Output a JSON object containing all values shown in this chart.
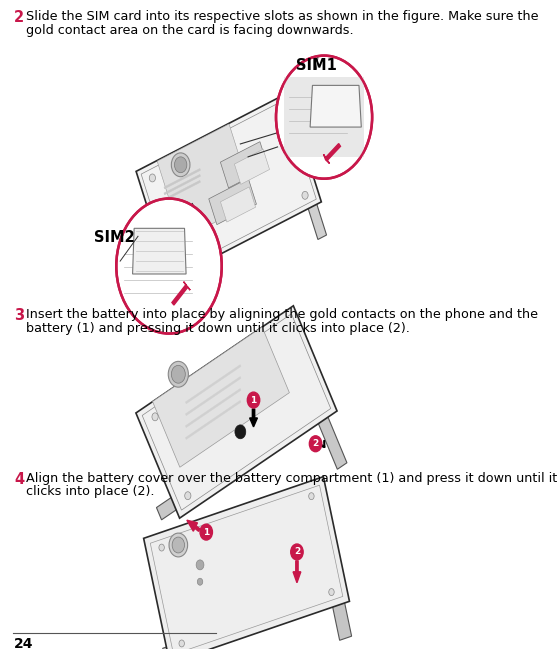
{
  "bg_color": "#ffffff",
  "page_number": "24",
  "step2_number": "2",
  "step2_text_line1": "Slide the SIM card into its respective slots as shown in the figure. Make sure the",
  "step2_text_line2": "gold contact area on the card is facing downwards.",
  "step3_number": "3",
  "step3_text_line1": "Insert the battery into place by aligning the gold contacts on the phone and the",
  "step3_text_line2": "battery (1) and pressing it down until it clicks into place (2).",
  "step4_number": "4",
  "step4_text_line1": "Align the battery cover over the battery compartment (1) and press it down until it",
  "step4_text_line2": "clicks into place (2).",
  "sim1_label": "SIM1",
  "sim2_label": "SIM2",
  "accent_color": "#c8174a",
  "text_color": "#000000",
  "body_font_size": 9.2,
  "step_num_font_size": 10.5,
  "sim_label_font_size": 10.5,
  "page_num_font_size": 10
}
